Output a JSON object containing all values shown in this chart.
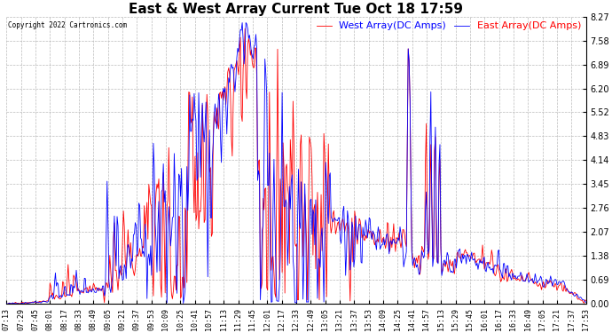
{
  "title": "East & West Array Current Tue Oct 18 17:59",
  "copyright": "Copyright 2022 Cartronics.com",
  "legend_east": "East Array(DC Amps)",
  "legend_west": "West Array(DC Amps)",
  "east_color": "blue",
  "west_color": "red",
  "background_color": "#ffffff",
  "grid_color": "#bbbbbb",
  "ylim": [
    0.0,
    8.27
  ],
  "yticks": [
    0.0,
    0.69,
    1.38,
    2.07,
    2.76,
    3.45,
    4.14,
    4.83,
    5.52,
    6.2,
    6.89,
    7.58,
    8.27
  ],
  "time_labels": [
    "07:13",
    "07:29",
    "07:45",
    "08:01",
    "08:17",
    "08:33",
    "08:49",
    "09:05",
    "09:21",
    "09:37",
    "09:53",
    "10:09",
    "10:25",
    "10:41",
    "10:57",
    "11:13",
    "11:29",
    "11:45",
    "12:01",
    "12:17",
    "12:33",
    "12:49",
    "13:05",
    "13:21",
    "13:37",
    "13:53",
    "14:09",
    "14:25",
    "14:41",
    "14:57",
    "15:13",
    "15:29",
    "15:45",
    "16:01",
    "16:17",
    "16:33",
    "16:49",
    "17:05",
    "17:21",
    "17:37",
    "17:53"
  ],
  "title_fontsize": 11,
  "label_fontsize": 7,
  "tick_fontsize": 6,
  "ytick_fontsize": 7
}
